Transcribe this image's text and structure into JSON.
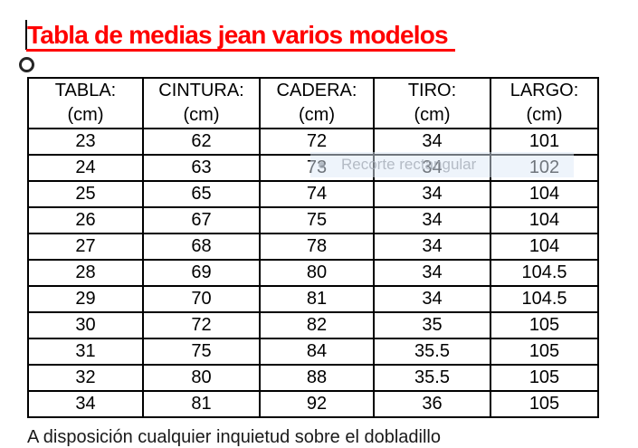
{
  "title": {
    "text": "Tabla de medias jean varios modelos",
    "color": "#ff0000"
  },
  "table": {
    "columns": [
      {
        "name": "TABLA:",
        "unit": "(cm)"
      },
      {
        "name": "CINTURA:",
        "unit": "(cm)"
      },
      {
        "name": "CADERA:",
        "unit": "(cm)"
      },
      {
        "name": "TIRO:",
        "unit": "(cm)"
      },
      {
        "name": "LARGO:",
        "unit": "(cm)"
      }
    ],
    "rows": [
      [
        "23",
        "62",
        "72",
        "34",
        "101"
      ],
      [
        "24",
        "63",
        "73",
        "34",
        "102"
      ],
      [
        "25",
        "65",
        "74",
        "34",
        "104"
      ],
      [
        "26",
        "67",
        "75",
        "34",
        "104"
      ],
      [
        "27",
        "68",
        "78",
        "34",
        "104"
      ],
      [
        "28",
        "69",
        "80",
        "34",
        "104.5"
      ],
      [
        "29",
        "70",
        "81",
        "34",
        "104.5"
      ],
      [
        "30",
        "72",
        "82",
        "35",
        "105"
      ],
      [
        "31",
        "75",
        "84",
        "35.5",
        "105"
      ],
      [
        "32",
        "80",
        "88",
        "35.5",
        "105"
      ],
      [
        "34",
        "81",
        "92",
        "36",
        "105"
      ]
    ]
  },
  "snip_toast": {
    "text": "Recorte rectangular"
  },
  "footer": {
    "clipped_line": "A disposición cualquier inquietud sobre el dobladillo"
  }
}
